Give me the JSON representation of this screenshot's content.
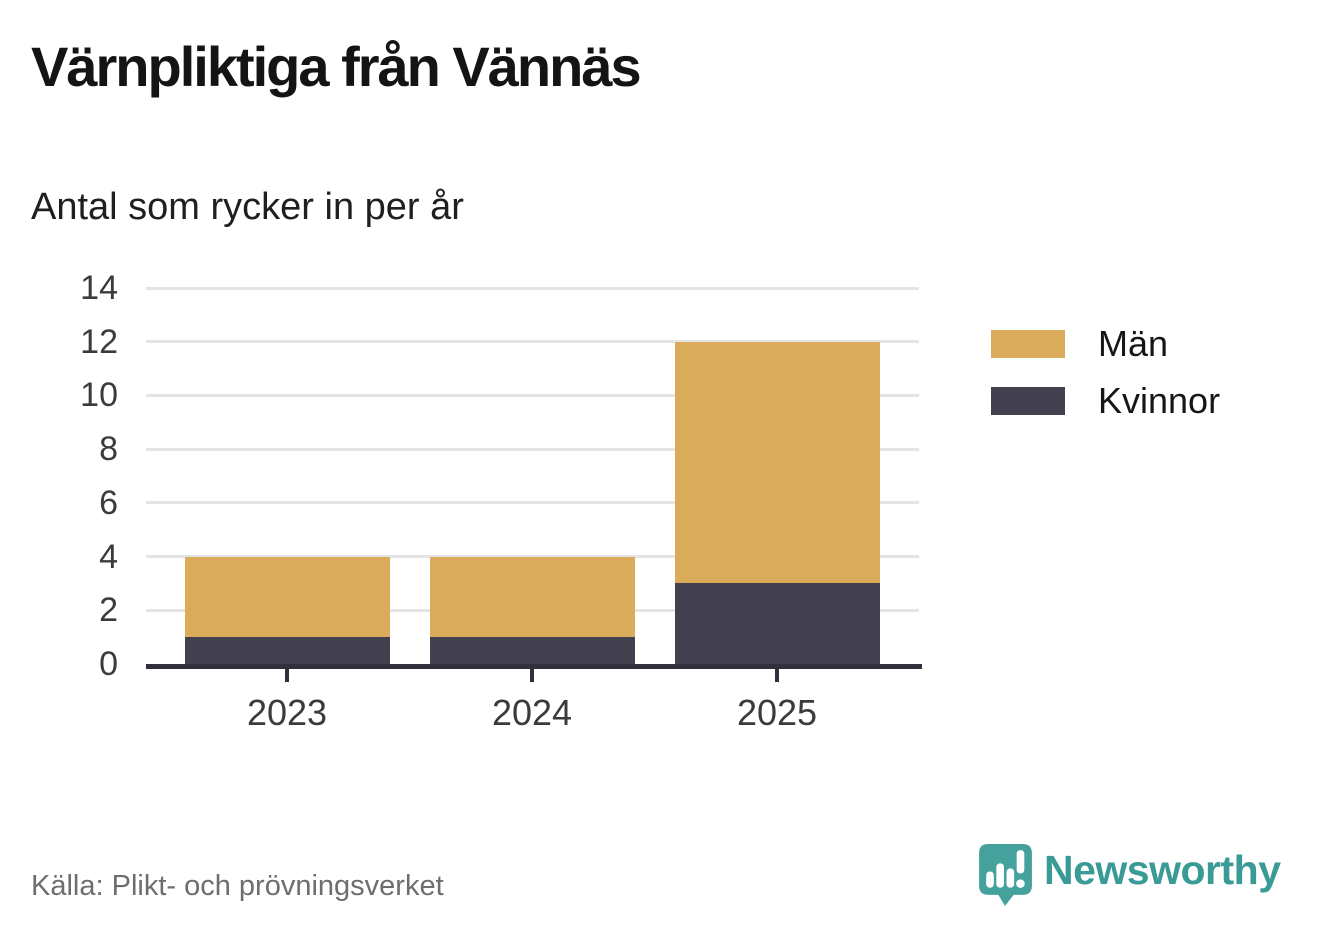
{
  "title": "Värnpliktiga från Vännäs",
  "subtitle": "Antal som rycker in per år",
  "source": "Källa: Plikt- och prövningsverket",
  "brand": {
    "name": "Newsworthy",
    "wordmark_color": "#3a9b96",
    "icon_color": "#45a19b",
    "icon": "bar-chart-speech-bubble-icon"
  },
  "colors": {
    "men": "#d9ab5b",
    "women": "#423f4e",
    "axis": "#332f3d",
    "grid": "#e4e4e4",
    "tick_label": "#3b3b3b"
  },
  "chart_data": {
    "type": "bar",
    "stacked": true,
    "title": "Värnpliktiga från Vännäs",
    "subtitle": "Antal som rycker in per år",
    "categories": [
      "2023",
      "2024",
      "2025"
    ],
    "series": [
      {
        "name": "Män",
        "color": "#d9ab5b",
        "values": [
          3,
          3,
          9
        ]
      },
      {
        "name": "Kvinnor",
        "color": "#423f4e",
        "values": [
          1,
          1,
          3
        ]
      }
    ],
    "totals": [
      4,
      4,
      12
    ],
    "xlabel": "",
    "ylabel": "",
    "ylim": [
      0,
      14
    ],
    "yticks": [
      0,
      2,
      4,
      6,
      8,
      10,
      12,
      14
    ],
    "grid": true,
    "legend_position": "right",
    "legend_order": [
      "Män",
      "Kvinnor"
    ]
  }
}
